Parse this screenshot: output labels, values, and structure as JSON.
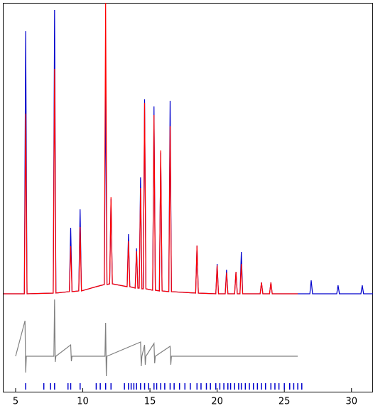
{
  "chart_data": {
    "type": "line",
    "xlim": [
      4.05,
      31.6
    ],
    "xticks": [
      5,
      10,
      15,
      20,
      25,
      30
    ],
    "ylim": [
      -139,
      410
    ],
    "series": [
      {
        "color": "#0000cc",
        "x": [
          4.1,
          5.65,
          5.75,
          5.85,
          7.8,
          7.9,
          8.0,
          9.0,
          9.1,
          9.2,
          9.7,
          9.8,
          9.9,
          11.0,
          11.6,
          11.7,
          11.8,
          12.0,
          12.1,
          12.2,
          13.3,
          13.4,
          13.5,
          13.9,
          14.0,
          14.1,
          14.2,
          14.3,
          14.4,
          14.5,
          14.6,
          14.7,
          15.2,
          15.3,
          15.4,
          15.7,
          15.8,
          15.9,
          16.4,
          16.5,
          16.6,
          18.4,
          18.5,
          18.6,
          19.9,
          20.0,
          20.1,
          20.6,
          20.7,
          20.8,
          21.3,
          21.4,
          21.5,
          21.7,
          21.8,
          21.9,
          23.2,
          23.3,
          23.4,
          23.9,
          24.0,
          24.1,
          26.9,
          27.0,
          27.1,
          28.9,
          29.0,
          29.1,
          30.7,
          30.8,
          30.9,
          31.6
        ],
        "values": [
          0,
          0,
          370,
          0,
          1,
          400,
          1,
          3,
          93,
          3,
          4,
          119,
          4,
          10,
          13,
          287,
          13,
          14,
          134,
          14,
          10,
          84,
          10,
          8,
          64,
          8,
          8,
          164,
          7,
          7,
          274,
          7,
          5,
          264,
          5,
          4,
          199,
          4,
          3,
          272,
          3,
          1,
          68,
          1,
          0,
          42,
          0,
          0,
          34,
          0,
          0,
          31,
          0,
          0,
          59,
          0,
          0,
          16,
          0,
          0,
          16,
          0,
          0,
          19,
          0,
          0,
          12,
          0,
          0,
          12,
          0,
          0
        ]
      },
      {
        "color": "#ff0000",
        "x": [
          4.1,
          5.65,
          5.75,
          5.85,
          7.8,
          7.9,
          8.0,
          9.0,
          9.1,
          9.2,
          9.7,
          9.8,
          9.9,
          11.0,
          11.6,
          11.7,
          11.8,
          12.0,
          12.1,
          12.2,
          13.3,
          13.4,
          13.5,
          13.9,
          14.0,
          14.1,
          14.2,
          14.3,
          14.4,
          14.5,
          14.6,
          14.7,
          15.2,
          15.3,
          15.4,
          15.7,
          15.8,
          15.9,
          16.4,
          16.5,
          16.6,
          18.4,
          18.5,
          18.6,
          19.9,
          20.0,
          20.1,
          20.6,
          20.7,
          20.8,
          21.3,
          21.4,
          21.5,
          21.7,
          21.8,
          21.9,
          23.2,
          23.3,
          23.4,
          23.9,
          24.0,
          24.1,
          26.0
        ],
        "values": [
          0,
          0,
          254,
          0,
          1,
          317,
          1,
          3,
          67,
          3,
          4,
          94,
          4,
          10,
          13,
          410,
          13,
          14,
          136,
          14,
          10,
          74,
          10,
          8,
          60,
          8,
          8,
          149,
          7,
          7,
          269,
          7,
          5,
          252,
          5,
          4,
          202,
          4,
          3,
          236,
          3,
          1,
          68,
          1,
          0,
          40,
          0,
          0,
          30,
          0,
          0,
          31,
          0,
          0,
          42,
          0,
          0,
          16,
          0,
          0,
          16,
          0,
          0
        ]
      },
      {
        "color": "#808080",
        "x": [
          5.0,
          5.7,
          5.75,
          5.8,
          7.85,
          7.9,
          7.95,
          8.0,
          9.1,
          9.15,
          9.2,
          11.65,
          11.7,
          11.75,
          11.8,
          14.3,
          14.35,
          14.4,
          14.6,
          14.65,
          14.7,
          15.3,
          15.35,
          15.4,
          16.5,
          16.55,
          16.6,
          26.0
        ],
        "values": [
          -88,
          -38,
          -111,
          -88,
          -88,
          -8,
          -96,
          -88,
          -72,
          -95,
          -88,
          -88,
          -41,
          -116,
          -88,
          -68,
          -102,
          -88,
          -72,
          -100,
          -88,
          -70,
          -98,
          -88,
          -74,
          -100,
          -88,
          -88
        ]
      }
    ],
    "reflections": {
      "color": "#0000cc",
      "x": [
        5.75,
        7.1,
        7.6,
        7.9,
        8.9,
        9.1,
        9.8,
        11.0,
        11.3,
        11.7,
        12.1,
        13.1,
        13.4,
        13.6,
        13.8,
        14.0,
        14.3,
        14.6,
        14.9,
        15.3,
        15.5,
        15.8,
        16.1,
        16.5,
        16.8,
        17.2,
        17.6,
        18.0,
        18.5,
        18.8,
        19.2,
        19.5,
        19.9,
        20.2,
        20.5,
        20.8,
        21.0,
        21.3,
        21.6,
        21.8,
        22.1,
        22.4,
        22.7,
        23.0,
        23.3,
        23.6,
        24.0,
        24.3,
        24.6,
        25.0,
        25.4,
        25.7,
        26.0,
        26.3
      ]
    }
  }
}
